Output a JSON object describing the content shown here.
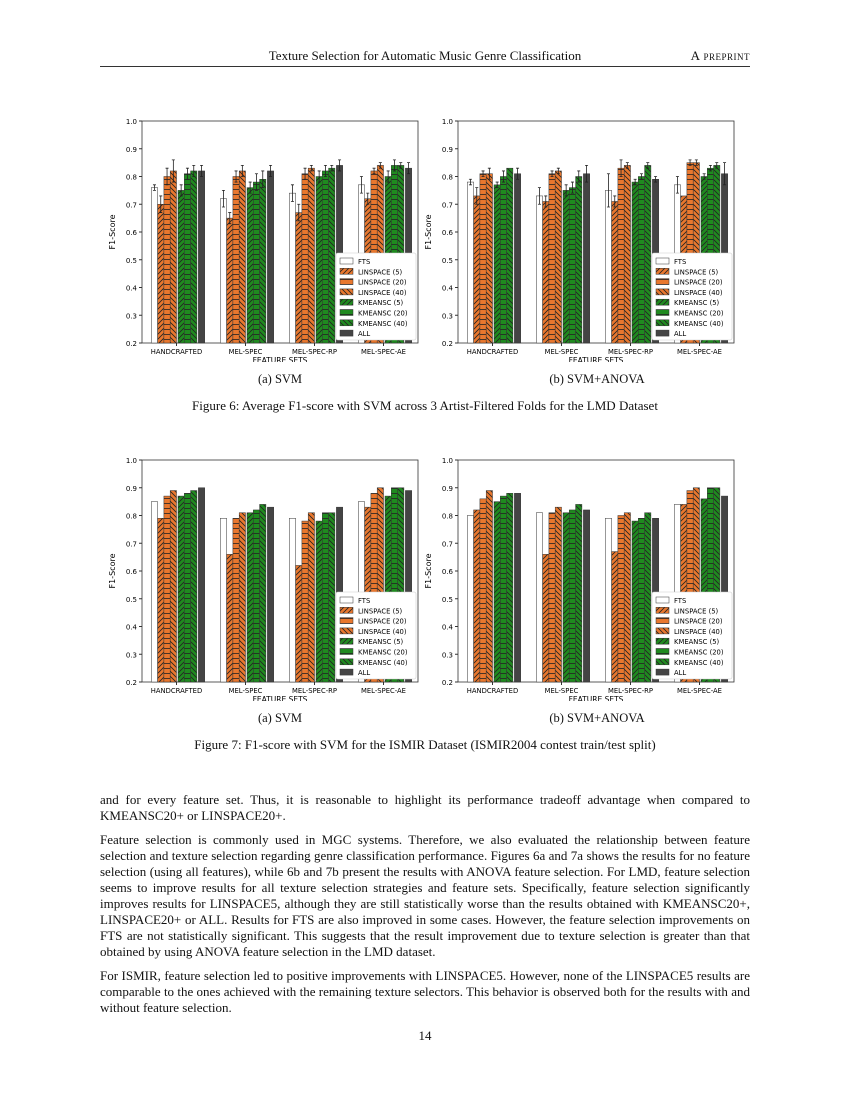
{
  "header": {
    "title": "Texture Selection for Automatic Music Genre Classification",
    "right": "A preprint"
  },
  "colors": {
    "orange": "#e8772e",
    "green": "#1f8a1f",
    "all": "#444444",
    "fts": "#ffffff"
  },
  "figure6": {
    "caption": "Figure 6: Average F1-score with SVM across 3 Artist-Filtered Folds for the LMD Dataset",
    "sub_a": "(a) SVM",
    "sub_b": "(b) SVM+ANOVA"
  },
  "figure7": {
    "caption": "Figure 7: F1-score with SVM for the ISMIR Dataset (ISMIR2004 contest train/test split)",
    "sub_a": "(a) SVM",
    "sub_b": "(b) SVM+ANOVA"
  },
  "chart_data": [
    {
      "type": "bar",
      "xlabel": "FEATURE SETS",
      "ylabel": "F1-Score",
      "ylim": [
        0.2,
        1.0
      ],
      "yticks": [
        "0.2",
        "0.3",
        "0.4",
        "0.5",
        "0.6",
        "0.7",
        "0.8",
        "0.9",
        "1.0"
      ],
      "legend": "bottom-right",
      "categories": [
        "HANDCRAFTED",
        "MEL-SPEC",
        "MEL-SPEC-RP",
        "MEL-SPEC-AE"
      ],
      "series": [
        {
          "name": "FTS",
          "values": [
            0.76,
            0.72,
            0.74,
            0.77
          ],
          "err": [
            0.01,
            0.03,
            0.03,
            0.03
          ]
        },
        {
          "name": "LINSPACE (5)",
          "values": [
            0.7,
            0.65,
            0.67,
            0.72
          ],
          "err": [
            0.03,
            0.02,
            0.03,
            0.02
          ]
        },
        {
          "name": "LINSPACE (20)",
          "values": [
            0.8,
            0.8,
            0.81,
            0.82
          ],
          "err": [
            0.03,
            0.02,
            0.02,
            0.01
          ]
        },
        {
          "name": "LINSPACE (40)",
          "values": [
            0.82,
            0.82,
            0.83,
            0.84
          ],
          "err": [
            0.04,
            0.02,
            0.01,
            0.01
          ]
        },
        {
          "name": "KMEANSC (5)",
          "values": [
            0.75,
            0.76,
            0.8,
            0.8
          ],
          "err": [
            0.02,
            0.02,
            0.02,
            0.02
          ]
        },
        {
          "name": "KMEANSC (20)",
          "values": [
            0.81,
            0.78,
            0.82,
            0.84
          ],
          "err": [
            0.02,
            0.03,
            0.02,
            0.02
          ]
        },
        {
          "name": "KMEANSC (40)",
          "values": [
            0.82,
            0.79,
            0.83,
            0.84
          ],
          "err": [
            0.02,
            0.03,
            0.01,
            0.01
          ]
        },
        {
          "name": "ALL",
          "values": [
            0.82,
            0.82,
            0.84,
            0.83
          ],
          "err": [
            0.02,
            0.02,
            0.02,
            0.02
          ]
        }
      ]
    },
    {
      "type": "bar",
      "xlabel": "FEATURE SETS",
      "ylabel": "F1-Score",
      "ylim": [
        0.2,
        1.0
      ],
      "yticks": [
        "0.2",
        "0.3",
        "0.4",
        "0.5",
        "0.6",
        "0.7",
        "0.8",
        "0.9",
        "1.0"
      ],
      "legend": "bottom-right",
      "categories": [
        "HANDCRAFTED",
        "MEL-SPEC",
        "MEL-SPEC-RP",
        "MEL-SPEC-AE"
      ],
      "series": [
        {
          "name": "FTS",
          "values": [
            0.78,
            0.73,
            0.75,
            0.77
          ],
          "err": [
            0.01,
            0.03,
            0.06,
            0.03
          ]
        },
        {
          "name": "LINSPACE (5)",
          "values": [
            0.73,
            0.71,
            0.71,
            0.73
          ],
          "err": [
            0.03,
            0.02,
            0.02,
            0.0
          ]
        },
        {
          "name": "LINSPACE (20)",
          "values": [
            0.81,
            0.81,
            0.83,
            0.85
          ],
          "err": [
            0.01,
            0.01,
            0.03,
            0.01
          ]
        },
        {
          "name": "LINSPACE (40)",
          "values": [
            0.81,
            0.82,
            0.84,
            0.85
          ],
          "err": [
            0.02,
            0.01,
            0.01,
            0.01
          ]
        },
        {
          "name": "KMEANSC (5)",
          "values": [
            0.77,
            0.75,
            0.78,
            0.8
          ],
          "err": [
            0.01,
            0.02,
            0.01,
            0.01
          ]
        },
        {
          "name": "KMEANSC (20)",
          "values": [
            0.8,
            0.76,
            0.8,
            0.83
          ],
          "err": [
            0.02,
            0.02,
            0.01,
            0.01
          ]
        },
        {
          "name": "KMEANSC (40)",
          "values": [
            0.83,
            0.8,
            0.84,
            0.84
          ],
          "err": [
            0.0,
            0.02,
            0.01,
            0.01
          ]
        },
        {
          "name": "ALL",
          "values": [
            0.81,
            0.81,
            0.79,
            0.81
          ],
          "err": [
            0.02,
            0.03,
            0.01,
            0.04
          ]
        }
      ]
    },
    {
      "type": "bar",
      "xlabel": "FEATURE SETS",
      "ylabel": "F1-Score",
      "ylim": [
        0.2,
        1.0
      ],
      "yticks": [
        "0.2",
        "0.3",
        "0.4",
        "0.5",
        "0.6",
        "0.7",
        "0.8",
        "0.9",
        "1.0"
      ],
      "legend": "bottom-right",
      "categories": [
        "HANDCRAFTED",
        "MEL-SPEC",
        "MEL-SPEC-RP",
        "MEL-SPEC-AE"
      ],
      "series": [
        {
          "name": "FTS",
          "values": [
            0.85,
            0.79,
            0.79,
            0.85
          ]
        },
        {
          "name": "LINSPACE (5)",
          "values": [
            0.79,
            0.66,
            0.62,
            0.83
          ]
        },
        {
          "name": "LINSPACE (20)",
          "values": [
            0.87,
            0.79,
            0.78,
            0.88
          ]
        },
        {
          "name": "LINSPACE (40)",
          "values": [
            0.89,
            0.81,
            0.81,
            0.9
          ]
        },
        {
          "name": "KMEANSC (5)",
          "values": [
            0.87,
            0.81,
            0.78,
            0.87
          ]
        },
        {
          "name": "KMEANSC (20)",
          "values": [
            0.88,
            0.82,
            0.81,
            0.9
          ]
        },
        {
          "name": "KMEANSC (40)",
          "values": [
            0.89,
            0.84,
            0.81,
            0.9
          ]
        },
        {
          "name": "ALL",
          "values": [
            0.9,
            0.83,
            0.83,
            0.89
          ]
        }
      ]
    },
    {
      "type": "bar",
      "xlabel": "FEATURE SETS",
      "ylabel": "F1-Score",
      "ylim": [
        0.2,
        1.0
      ],
      "yticks": [
        "0.2",
        "0.3",
        "0.4",
        "0.5",
        "0.6",
        "0.7",
        "0.8",
        "0.9",
        "1.0"
      ],
      "legend": "bottom-right",
      "categories": [
        "HANDCRAFTED",
        "MEL-SPEC",
        "MEL-SPEC-RP",
        "MEL-SPEC-AE"
      ],
      "series": [
        {
          "name": "FTS",
          "values": [
            0.8,
            0.81,
            0.79,
            0.84
          ]
        },
        {
          "name": "LINSPACE (5)",
          "values": [
            0.82,
            0.66,
            0.67,
            0.84
          ]
        },
        {
          "name": "LINSPACE (20)",
          "values": [
            0.86,
            0.81,
            0.8,
            0.89
          ]
        },
        {
          "name": "LINSPACE (40)",
          "values": [
            0.89,
            0.83,
            0.81,
            0.9
          ]
        },
        {
          "name": "KMEANSC (5)",
          "values": [
            0.85,
            0.81,
            0.78,
            0.86
          ]
        },
        {
          "name": "KMEANSC (20)",
          "values": [
            0.87,
            0.82,
            0.79,
            0.9
          ]
        },
        {
          "name": "KMEANSC (40)",
          "values": [
            0.88,
            0.84,
            0.81,
            0.9
          ]
        },
        {
          "name": "ALL",
          "values": [
            0.88,
            0.82,
            0.79,
            0.87
          ]
        }
      ]
    }
  ],
  "body": [
    "and for every feature set. Thus, it is reasonable to highlight its performance tradeoff advantage when compared to KMEANSC20+ or LINSPACE20+.",
    "Feature selection is commonly used in MGC systems. Therefore, we also evaluated the relationship between feature selection and texture selection regarding genre classification performance. Figures 6a and 7a shows the results for no feature selection (using all features), while 6b and 7b present the results with ANOVA feature selection. For LMD, feature selection seems to improve results for all texture selection strategies and feature sets. Specifically, feature selection significantly improves results for LINSPACE5, although they are still statistically worse than the results obtained with KMEANSC20+, LINSPACE20+ or ALL. Results for FTS are also improved in some cases. However, the feature selection improvements on FTS are not statistically significant. This suggests that the result improvement due to texture selection is greater than that obtained by using ANOVA feature selection in the LMD dataset.",
    "For ISMIR, feature selection led to positive improvements with LINSPACE5. However, none of the LINSPACE5 results are comparable to the ones achieved with the remaining texture selectors. This behavior is observed both for the results with and without feature selection."
  ],
  "page_number": "14"
}
